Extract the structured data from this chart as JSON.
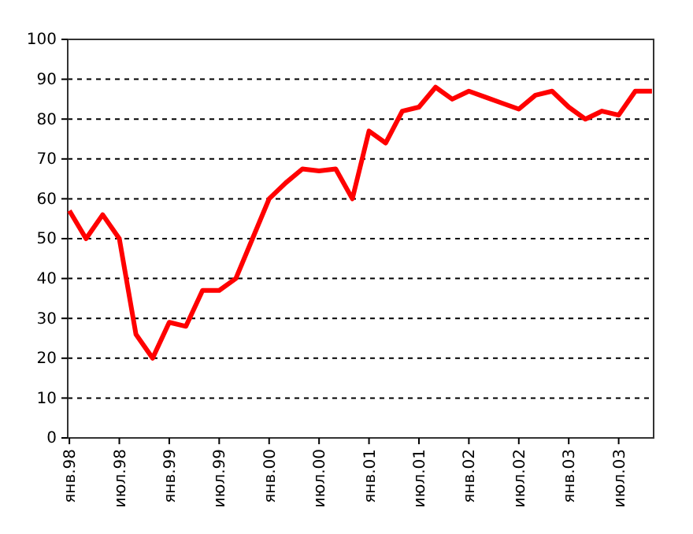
{
  "chart_data": {
    "type": "line",
    "categories": [
      "янв.98",
      null,
      null,
      "июл.98",
      null,
      null,
      "янв.99",
      null,
      null,
      "июл.99",
      null,
      null,
      "янв.00",
      null,
      null,
      "июл.00",
      null,
      null,
      "янв.01",
      null,
      null,
      "июл.01",
      null,
      null,
      "янв.02",
      null,
      null,
      "июл.02",
      null,
      null,
      "янв.03",
      null,
      null,
      "июл.03",
      null,
      null
    ],
    "series": [
      {
        "color": "#ff0000",
        "values": [
          57,
          50,
          56,
          50,
          26,
          20,
          29,
          28,
          37,
          37,
          40,
          50,
          60,
          64,
          67.5,
          67,
          67.5,
          60,
          77,
          74,
          82,
          83,
          88,
          85,
          87,
          85.5,
          84,
          82.5,
          86,
          87,
          83,
          80,
          82,
          81,
          87,
          87
        ]
      }
    ],
    "ylim": [
      0,
      100
    ],
    "yticks": [
      0,
      10,
      20,
      30,
      40,
      50,
      60,
      70,
      80,
      90,
      100
    ],
    "grid": "y",
    "marker": "none",
    "line_style": "solid"
  }
}
